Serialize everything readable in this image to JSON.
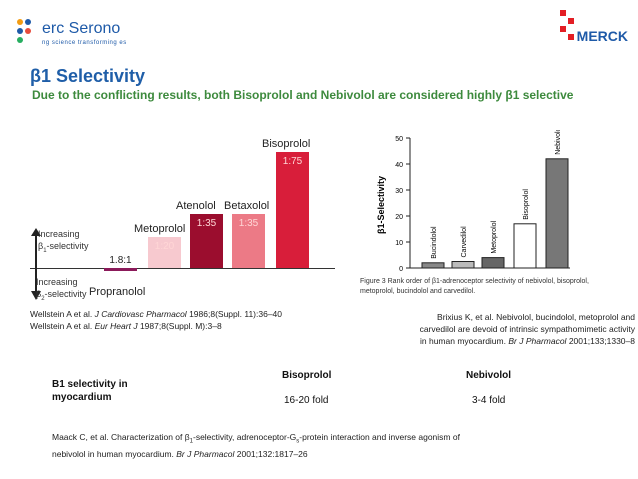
{
  "header": {
    "company_name": "erc Serono",
    "company_tagline": "ng science transforming  es",
    "right_logo": "MERCK",
    "left_logo_icon": "serono-logo-icon",
    "right_logo_icon": "merck-logo-icon"
  },
  "slide": {
    "title": "β1 Selectivity",
    "subtitle": "Due to the conflicting results, both Bisoprolol and Nebivolol are considered highly β1 selective"
  },
  "chart_data": {
    "type": "bar",
    "categories": [
      "Propranolol",
      "Metoprolol",
      "Atenolol",
      "Betaxolol",
      "Bisoprolol"
    ],
    "value_labels": [
      "1.8:1",
      "1:20",
      "1:35",
      "1:35",
      "1:75"
    ],
    "values": [
      -1.8,
      20,
      35,
      35,
      75
    ],
    "axis_labels": {
      "up_line1": "Increasing",
      "up_line2": "β1-selectivity",
      "down_line1": "Increasing",
      "down_line2": "β2-selectivity"
    },
    "colors": [
      "#8b1a5a",
      "#f7c9cf",
      "#9b0d2e",
      "#ec7a86",
      "#d81e3a"
    ]
  },
  "references": {
    "wellstein_1": "Wellstein A et al. J Cardiovasc Pharmacol 1986;8(Suppl. 11):36–40",
    "wellstein_2": "Wellstein A et al. Eur Heart J 1987;8(Suppl. M):3–8",
    "brixius": "Brixius K, et al. Nebivolol, bucindolol, metoprolol and carvedilol are devoid of intrinsic sympathomimetic activity in human myocardium. Br J Pharmacol 2001;133;1330–8",
    "maack": "Maack C, et al. Characterization of β1-selectivity, adrenoceptor-Gs-protein interaction and inverse agonism of nebivolol in human myocardium. Br J Pharmacol 2001;132:1817–26"
  },
  "figure": {
    "ylabel": "β1-Selectivity",
    "yticks": [
      "50",
      "40",
      "30",
      "20",
      "10",
      "0"
    ],
    "categories": [
      "Bucindolol",
      "Carvedilol",
      "Metoprolol",
      "Bisoprolol",
      "Nebivolol"
    ],
    "values": [
      2,
      2.5,
      4,
      17,
      42
    ],
    "caption": "Figure 3  Rank order of β1-adrenoceptor selectivity of nebivolol, bisoprolol, metoprolol, bucindolol and carvedilol."
  },
  "table": {
    "row_label": "B1 selectivity in myocardium",
    "col1_header": "Bisoprolol",
    "col2_header": "Nebivolol",
    "col1_value": "16-20 fold",
    "col2_value": "3-4 fold"
  }
}
